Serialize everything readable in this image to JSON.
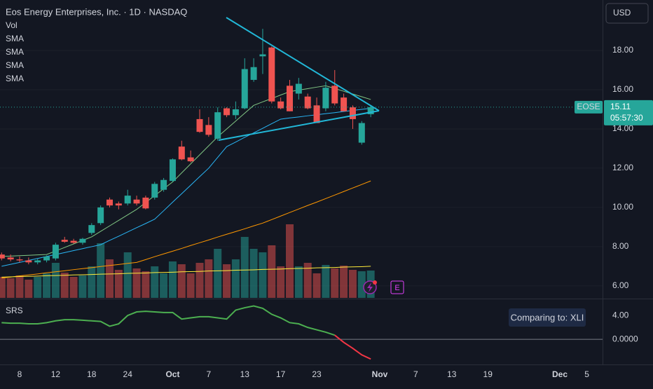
{
  "chart_data": {
    "type": "candlestick",
    "title": "Eos Energy Enterprises, Inc. · 1D · NASDAQ",
    "currency": "USD",
    "symbol": "EOSE",
    "last_price": 15.11,
    "countdown": "05:57:30",
    "event_label": "E",
    "up_color": "#26a69a",
    "down_color": "#ef5350",
    "ylim": [
      5.39,
      20.57
    ],
    "yticks": [
      {
        "value": 6,
        "label": "6.00"
      },
      {
        "value": 8,
        "label": "8.00"
      },
      {
        "value": 10,
        "label": "10.00"
      },
      {
        "value": 12,
        "label": "12.00"
      },
      {
        "value": 14,
        "label": "14.00"
      },
      {
        "value": 16,
        "label": "16.00"
      },
      {
        "value": 18,
        "label": "18.00"
      }
    ],
    "grid": true,
    "categories": [
      null,
      null,
      "8",
      null,
      null,
      null,
      "12",
      null,
      null,
      null,
      "18",
      null,
      null,
      null,
      "24",
      null,
      null,
      null,
      null,
      "Oct",
      null,
      null,
      null,
      "7",
      null,
      null,
      null,
      "13",
      null,
      null,
      null,
      "17",
      null,
      null,
      null,
      "23",
      null,
      null,
      null,
      null,
      null,
      null
    ],
    "future_categories": [
      "Nov",
      null,
      null,
      null,
      "7",
      null,
      null,
      null,
      "13",
      null,
      null,
      null,
      "19",
      null,
      null,
      null,
      null,
      null,
      null,
      null,
      "Dec",
      null,
      null,
      "5"
    ],
    "open": [
      7.6,
      7.45,
      7.35,
      7.3,
      7.2,
      7.3,
      7.4,
      8.35,
      8.3,
      8.2,
      8.7,
      9.2,
      10.4,
      10.2,
      10.2,
      10.4,
      10.5,
      10.5,
      10.9,
      11.35,
      13.1,
      12.55,
      14.5,
      14.2,
      13.5,
      15.05,
      14.7,
      15.05,
      16.5,
      17.7,
      18.15,
      15.4,
      16.2,
      15.8,
      15.65,
      15.2,
      15.05,
      16.2,
      15.6,
      15.1,
      13.3,
      14.75
    ],
    "high": [
      7.7,
      7.6,
      7.5,
      7.45,
      7.4,
      7.55,
      8.2,
      8.5,
      8.4,
      8.45,
      9.2,
      10.1,
      10.5,
      10.3,
      10.9,
      10.6,
      10.6,
      11.3,
      11.5,
      12.5,
      13.4,
      12.9,
      15.0,
      14.6,
      15.1,
      15.1,
      15.4,
      17.6,
      17.6,
      19.1,
      18.2,
      15.6,
      16.5,
      16.6,
      15.8,
      15.6,
      16.4,
      17.0,
      15.8,
      15.2,
      14.4,
      15.2
    ],
    "low": [
      7.3,
      7.25,
      7.2,
      7.1,
      7.1,
      7.2,
      7.3,
      8.2,
      8.15,
      8.1,
      8.6,
      9.1,
      10.0,
      9.9,
      10.1,
      10.1,
      9.9,
      10.4,
      10.8,
      11.3,
      12.4,
      12.3,
      13.8,
      13.6,
      13.4,
      14.6,
      14.5,
      15.0,
      16.4,
      16.8,
      15.3,
      15.0,
      14.9,
      15.5,
      15.0,
      14.3,
      14.9,
      15.2,
      14.9,
      14.0,
      13.2,
      14.6
    ],
    "close": [
      7.4,
      7.35,
      7.3,
      7.2,
      7.3,
      7.5,
      8.1,
      8.25,
      8.2,
      8.4,
      9.1,
      10.0,
      10.1,
      10.1,
      10.6,
      10.2,
      9.95,
      11.2,
      11.4,
      12.45,
      12.45,
      12.35,
      13.85,
      13.7,
      14.85,
      14.7,
      15.0,
      17.05,
      17.15,
      17.8,
      15.4,
      15.05,
      14.9,
      16.3,
      15.05,
      14.3,
      16.1,
      15.3,
      14.9,
      14.5,
      14.3,
      15.11
    ],
    "volume": {
      "name": "Vol",
      "values": [
        3.0,
        2.8,
        3.2,
        2.6,
        3.0,
        3.5,
        5.0,
        3.6,
        3.0,
        3.2,
        4.5,
        7.8,
        5.5,
        4.0,
        6.5,
        4.2,
        3.8,
        4.5,
        3.5,
        5.2,
        4.8,
        3.5,
        5.0,
        5.5,
        7.0,
        4.8,
        5.5,
        8.7,
        7.0,
        6.5,
        7.5,
        4.5,
        10.5,
        4.5,
        5.0,
        3.5,
        4.7,
        4.2,
        4.6,
        4.0,
        3.8,
        3.9
      ]
    },
    "series": [
      {
        "name": "SMA",
        "color": "#81c784",
        "values": [
          7.5,
          7.52,
          7.54,
          7.56,
          7.58,
          7.6,
          7.78,
          7.96,
          8.14,
          8.32,
          8.5,
          8.78,
          9.06,
          9.34,
          9.62,
          9.9,
          10.25,
          10.6,
          10.95,
          11.3,
          11.76,
          12.22,
          12.68,
          13.14,
          13.6,
          14.0,
          14.4,
          14.8,
          15.2,
          15.38,
          15.55,
          15.73,
          15.9,
          15.98,
          16.05,
          16.13,
          16.2,
          16.06,
          15.92,
          15.78,
          15.64,
          15.5
        ]
      },
      {
        "name": "SMA",
        "color": "#29b6f6",
        "values": [
          7.0,
          7.1,
          7.2,
          7.3,
          7.4,
          7.5,
          7.6,
          7.7,
          7.8,
          7.9,
          8.0,
          8.1,
          8.32,
          8.53,
          8.75,
          8.97,
          9.18,
          9.4,
          9.83,
          10.27,
          10.7,
          11.13,
          11.57,
          12.0,
          12.55,
          13.1,
          13.33,
          13.57,
          13.8,
          14.03,
          14.27,
          14.5,
          14.56,
          14.61,
          14.67,
          14.72,
          14.78,
          14.83,
          14.89,
          14.94,
          15.0,
          15.05
        ]
      },
      {
        "name": "SMA",
        "color": "#ff9800",
        "values": [
          6.4,
          6.45,
          6.51,
          6.56,
          6.61,
          6.67,
          6.72,
          6.77,
          6.83,
          6.88,
          6.93,
          6.99,
          7.04,
          7.09,
          7.15,
          7.2,
          7.34,
          7.49,
          7.63,
          7.77,
          7.91,
          8.06,
          8.2,
          8.34,
          8.49,
          8.63,
          8.77,
          8.91,
          9.06,
          9.2,
          9.38,
          9.56,
          9.74,
          9.92,
          10.1,
          10.27,
          10.45,
          10.63,
          10.81,
          10.99,
          11.17,
          11.35
        ]
      },
      {
        "name": "SMA",
        "color": "#ffeb3b",
        "values": [
          6.45,
          6.46,
          6.48,
          6.49,
          6.5,
          6.52,
          6.53,
          6.54,
          6.56,
          6.57,
          6.58,
          6.6,
          6.61,
          6.62,
          6.64,
          6.65,
          6.66,
          6.68,
          6.69,
          6.7,
          6.72,
          6.73,
          6.74,
          6.76,
          6.77,
          6.78,
          6.8,
          6.81,
          6.82,
          6.84,
          6.85,
          6.86,
          6.88,
          6.89,
          6.9,
          6.92,
          6.93,
          6.94,
          6.96,
          6.97,
          6.98,
          7.0
        ]
      }
    ],
    "srs": {
      "name": "SRS",
      "comparison": "Comparing to: XLI",
      "up_color": "#4caf50",
      "down_color": "#f23645",
      "ylim": [
        -4.8,
        6.6
      ],
      "yticks": [
        {
          "value": 4,
          "label": "4.00"
        },
        {
          "value": 0,
          "label": "0.0000"
        }
      ],
      "values": [
        2.8,
        2.7,
        2.7,
        2.6,
        2.6,
        2.8,
        3.1,
        3.3,
        3.3,
        3.2,
        3.1,
        3.0,
        2.2,
        2.6,
        4.0,
        4.6,
        4.7,
        4.6,
        4.5,
        4.5,
        3.4,
        3.6,
        3.8,
        3.8,
        3.6,
        3.4,
        4.9,
        5.3,
        5.6,
        5.2,
        4.2,
        3.6,
        2.8,
        2.6,
        2.0,
        1.6,
        1.2,
        0.7,
        -0.5,
        -1.5,
        -2.6,
        -3.3
      ]
    }
  }
}
